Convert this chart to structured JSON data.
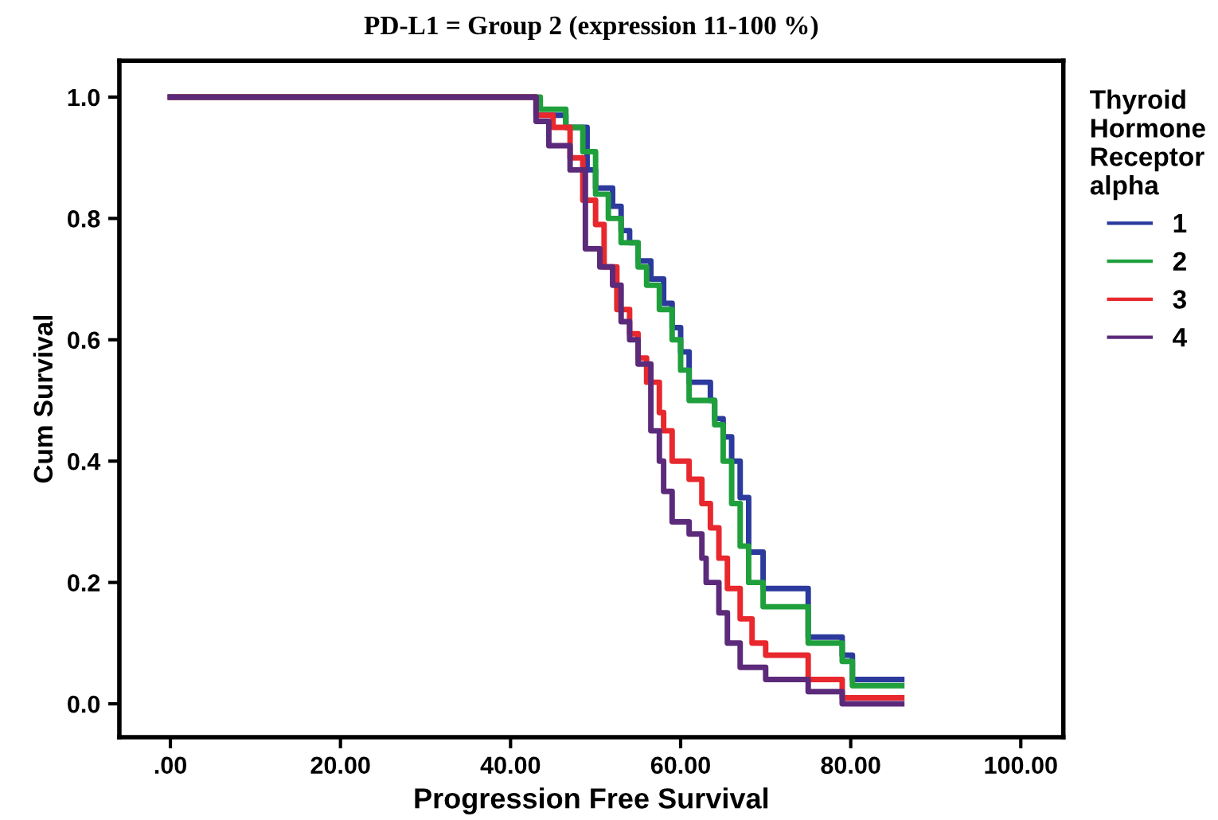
{
  "chart_data": {
    "type": "step",
    "title": "PD-L1 = Group 2 (expression 11-100 %)",
    "xlabel": "Progression Free Survival",
    "ylabel": "Cum Survival",
    "legend_title": "Thyroid Hormone Receptor alpha",
    "legend": "right",
    "grid": false,
    "marker": "none",
    "line_style": "solid",
    "xlim": [
      -6,
      105
    ],
    "ylim": [
      -0.055,
      1.06
    ],
    "xticks": [
      {
        "value": 0,
        "label": ".00"
      },
      {
        "value": 20,
        "label": "20.00"
      },
      {
        "value": 40,
        "label": "40.00"
      },
      {
        "value": 60,
        "label": "60.00"
      },
      {
        "value": 80,
        "label": "80.00"
      },
      {
        "value": 100,
        "label": "100.00"
      }
    ],
    "yticks": [
      {
        "value": 0,
        "label": "0.0"
      },
      0.2,
      0.4,
      0.6,
      0.8,
      {
        "value": 1,
        "label": "1.0"
      }
    ],
    "series": [
      {
        "name": "1",
        "color": "#2b3a9c",
        "x": [
          0,
          43,
          46.5,
          49,
          50,
          52,
          53,
          54,
          55,
          56.5,
          58,
          59,
          60,
          61,
          63.5,
          64,
          65,
          66,
          67,
          68,
          69.7,
          75,
          79,
          80.2,
          86
        ],
        "values": [
          1.0,
          0.97,
          0.95,
          0.88,
          0.85,
          0.82,
          0.78,
          0.76,
          0.73,
          0.7,
          0.66,
          0.62,
          0.58,
          0.53,
          0.5,
          0.47,
          0.44,
          0.4,
          0.34,
          0.25,
          0.19,
          0.11,
          0.08,
          0.04,
          0.04
        ]
      },
      {
        "name": "2",
        "color": "#1fa03c",
        "x": [
          0,
          43.5,
          46.5,
          48.5,
          50,
          51.5,
          53,
          55,
          56,
          57.5,
          59,
          60,
          61,
          64,
          65,
          66,
          67,
          68,
          69.7,
          75,
          79,
          80.2,
          86
        ],
        "values": [
          1.0,
          0.98,
          0.95,
          0.91,
          0.84,
          0.8,
          0.76,
          0.72,
          0.69,
          0.65,
          0.6,
          0.55,
          0.5,
          0.46,
          0.4,
          0.33,
          0.26,
          0.2,
          0.16,
          0.1,
          0.07,
          0.03,
          0.03
        ]
      },
      {
        "name": "3",
        "color": "#e8282d",
        "x": [
          0,
          43,
          45,
          47,
          48.5,
          50,
          51,
          52.5,
          54,
          55,
          56,
          57.5,
          58,
          59,
          61,
          62.5,
          63.5,
          64.5,
          65.5,
          67,
          68.4,
          70,
          75,
          79,
          86
        ],
        "values": [
          1.0,
          0.97,
          0.95,
          0.9,
          0.83,
          0.79,
          0.72,
          0.65,
          0.61,
          0.57,
          0.53,
          0.48,
          0.45,
          0.4,
          0.37,
          0.33,
          0.29,
          0.24,
          0.19,
          0.14,
          0.1,
          0.08,
          0.04,
          0.01,
          0.01
        ]
      },
      {
        "name": "4",
        "color": "#5c2a7a",
        "x": [
          0,
          43,
          44.5,
          47,
          48.8,
          50.5,
          52,
          53,
          54,
          55,
          56.5,
          57.5,
          58,
          59,
          61,
          62.5,
          63,
          64.5,
          65.5,
          67,
          70,
          75,
          79,
          86
        ],
        "values": [
          1.0,
          0.96,
          0.92,
          0.88,
          0.75,
          0.72,
          0.69,
          0.63,
          0.6,
          0.56,
          0.45,
          0.4,
          0.35,
          0.3,
          0.28,
          0.24,
          0.2,
          0.15,
          0.1,
          0.06,
          0.04,
          0.02,
          0.0,
          0.0
        ]
      }
    ]
  }
}
